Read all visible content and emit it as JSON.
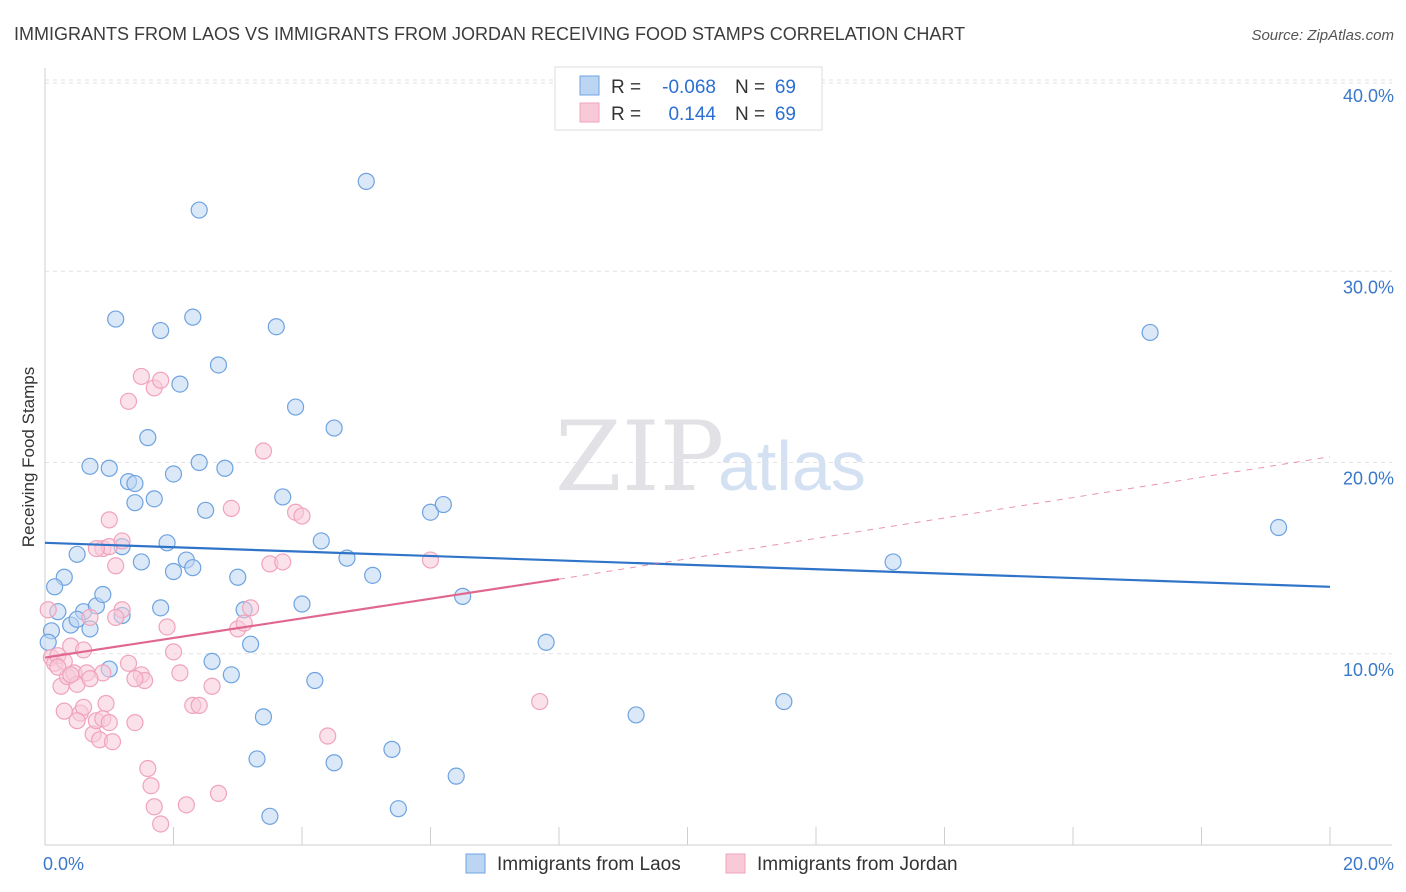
{
  "chart_data": {
    "type": "scatter",
    "title": "IMMIGRANTS FROM LAOS VS IMMIGRANTS FROM JORDAN RECEIVING FOOD STAMPS CORRELATION CHART",
    "source": "Source: ZipAtlas.com",
    "ylabel": "Receiving Food Stamps",
    "xlabel": "",
    "xlim": [
      0,
      20
    ],
    "ylim": [
      0,
      40
    ],
    "x_ticks": [
      "0.0%",
      "20.0%"
    ],
    "y_ticks": [
      {
        "value": 10,
        "label": "10.0%"
      },
      {
        "value": 20,
        "label": "20.0%"
      },
      {
        "value": 30,
        "label": "30.0%"
      },
      {
        "value": 40,
        "label": "40.0%"
      }
    ],
    "watermark": {
      "part1": "ZIP",
      "part2": "atlas"
    },
    "legend": [
      {
        "r_label": "R =",
        "r_value": "-0.068",
        "n_label": "N =",
        "n_value": "69"
      },
      {
        "r_label": "R =",
        "r_value": "0.144",
        "n_label": "N =",
        "n_value": "69"
      }
    ],
    "series": [
      {
        "name": "Immigrants from Laos",
        "color": "#6fa3e0",
        "fill": "#bcd5f2",
        "line_color": "#2f74c8",
        "trend": {
          "x0": 0,
          "y0": 15.8,
          "x1": 20,
          "y1": 13.5
        },
        "points": [
          [
            0.1,
            11.2
          ],
          [
            0.2,
            12.2
          ],
          [
            0.3,
            14.0
          ],
          [
            0.4,
            11.5
          ],
          [
            0.5,
            15.2
          ],
          [
            0.6,
            12.2
          ],
          [
            0.7,
            11.3
          ],
          [
            0.8,
            12.5
          ],
          [
            0.9,
            13.1
          ],
          [
            0.7,
            19.8
          ],
          [
            1.0,
            19.7
          ],
          [
            1.1,
            27.5
          ],
          [
            1.0,
            9.2
          ],
          [
            1.2,
            15.6
          ],
          [
            1.3,
            19.0
          ],
          [
            1.4,
            18.9
          ],
          [
            1.4,
            17.9
          ],
          [
            1.5,
            14.8
          ],
          [
            1.6,
            21.3
          ],
          [
            1.7,
            18.1
          ],
          [
            1.8,
            12.4
          ],
          [
            1.8,
            26.9
          ],
          [
            1.9,
            15.8
          ],
          [
            2.0,
            19.4
          ],
          [
            2.1,
            24.1
          ],
          [
            2.2,
            14.9
          ],
          [
            2.3,
            27.6
          ],
          [
            2.4,
            20.0
          ],
          [
            2.3,
            14.5
          ],
          [
            2.5,
            17.5
          ],
          [
            2.4,
            33.2
          ],
          [
            2.7,
            25.1
          ],
          [
            2.8,
            19.7
          ],
          [
            2.9,
            8.9
          ],
          [
            2.6,
            9.6
          ],
          [
            3.0,
            14.0
          ],
          [
            3.1,
            12.3
          ],
          [
            3.2,
            10.5
          ],
          [
            3.4,
            6.7
          ],
          [
            3.3,
            4.5
          ],
          [
            3.6,
            27.1
          ],
          [
            3.7,
            18.2
          ],
          [
            3.9,
            22.9
          ],
          [
            4.0,
            12.6
          ],
          [
            4.2,
            8.6
          ],
          [
            4.3,
            15.9
          ],
          [
            4.5,
            21.8
          ],
          [
            4.5,
            4.3
          ],
          [
            4.7,
            15.0
          ],
          [
            5.0,
            34.7
          ],
          [
            5.1,
            14.1
          ],
          [
            5.4,
            5.0
          ],
          [
            5.5,
            1.9
          ],
          [
            6.0,
            17.4
          ],
          [
            6.2,
            17.8
          ],
          [
            6.4,
            3.6
          ],
          [
            6.5,
            13.0
          ],
          [
            7.8,
            10.6
          ],
          [
            9.2,
            6.8
          ],
          [
            11.5,
            7.5
          ],
          [
            13.2,
            14.8
          ],
          [
            17.2,
            26.8
          ],
          [
            19.2,
            16.6
          ],
          [
            3.5,
            1.5
          ],
          [
            0.15,
            13.5
          ],
          [
            0.05,
            10.6
          ],
          [
            0.5,
            11.8
          ],
          [
            1.2,
            12.0
          ],
          [
            2.0,
            14.3
          ]
        ]
      },
      {
        "name": "Immigrants from Jordan",
        "color": "#f0a3bc",
        "fill": "#f8cad8",
        "line_color": "#e0688f",
        "trend": {
          "x0": 0,
          "y0": 9.8,
          "x1": 8,
          "y1": 13.9
        },
        "trend_ext": {
          "x0": 8,
          "y0": 13.9,
          "x1": 20,
          "y1": 20.3
        },
        "points": [
          [
            0.05,
            12.3
          ],
          [
            0.1,
            9.8
          ],
          [
            0.15,
            9.5
          ],
          [
            0.2,
            9.9
          ],
          [
            0.25,
            8.3
          ],
          [
            0.3,
            7.0
          ],
          [
            0.35,
            8.8
          ],
          [
            0.4,
            10.4
          ],
          [
            0.45,
            9.0
          ],
          [
            0.5,
            8.4
          ],
          [
            0.55,
            6.9
          ],
          [
            0.6,
            7.2
          ],
          [
            0.65,
            9.0
          ],
          [
            0.7,
            11.9
          ],
          [
            0.75,
            5.8
          ],
          [
            0.8,
            6.5
          ],
          [
            0.85,
            5.5
          ],
          [
            0.9,
            6.6
          ],
          [
            0.95,
            7.4
          ],
          [
            1.0,
            6.4
          ],
          [
            1.05,
            5.4
          ],
          [
            0.9,
            15.5
          ],
          [
            1.0,
            17.0
          ],
          [
            1.1,
            14.6
          ],
          [
            1.2,
            12.3
          ],
          [
            1.3,
            9.5
          ],
          [
            1.4,
            6.4
          ],
          [
            1.5,
            8.9
          ],
          [
            1.55,
            8.6
          ],
          [
            1.6,
            4.0
          ],
          [
            1.65,
            3.1
          ],
          [
            1.7,
            2.0
          ],
          [
            1.8,
            1.1
          ],
          [
            1.9,
            11.4
          ],
          [
            2.0,
            10.1
          ],
          [
            2.1,
            9.0
          ],
          [
            1.5,
            24.5
          ],
          [
            1.7,
            23.9
          ],
          [
            1.8,
            24.3
          ],
          [
            1.3,
            23.2
          ],
          [
            2.2,
            2.1
          ],
          [
            2.3,
            7.3
          ],
          [
            2.4,
            7.3
          ],
          [
            2.6,
            8.3
          ],
          [
            2.7,
            2.7
          ],
          [
            2.9,
            17.6
          ],
          [
            3.0,
            11.3
          ],
          [
            3.1,
            11.6
          ],
          [
            3.2,
            12.4
          ],
          [
            3.4,
            20.6
          ],
          [
            3.5,
            14.7
          ],
          [
            3.7,
            14.8
          ],
          [
            3.9,
            17.4
          ],
          [
            4.0,
            17.2
          ],
          [
            4.4,
            5.7
          ],
          [
            6.0,
            14.9
          ],
          [
            7.7,
            7.5
          ],
          [
            1.0,
            15.6
          ],
          [
            0.8,
            15.5
          ],
          [
            0.3,
            9.6
          ],
          [
            0.2,
            9.3
          ],
          [
            0.6,
            10.2
          ],
          [
            1.2,
            15.9
          ],
          [
            1.1,
            11.9
          ],
          [
            1.4,
            8.7
          ],
          [
            0.9,
            9.0
          ],
          [
            0.7,
            8.7
          ],
          [
            0.5,
            6.5
          ],
          [
            0.4,
            8.9
          ]
        ]
      }
    ]
  }
}
